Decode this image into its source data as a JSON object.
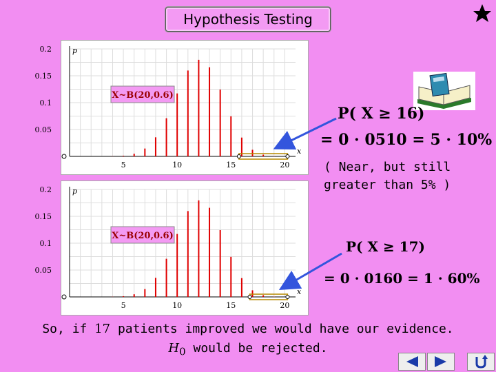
{
  "header": {
    "title": "Hypothesis Testing"
  },
  "icons": {
    "star": "star-icon",
    "book": "book-with-calculator-icon"
  },
  "charts": [
    {
      "label": "X~B(20,0.6)",
      "highlight_from": 16
    },
    {
      "label": "X~B(20,0.6)",
      "highlight_from": 17
    }
  ],
  "chart_data": [
    {
      "type": "bar",
      "title": "",
      "annotation": "X~B(20,0.6)",
      "xlabel": "x",
      "ylabel": "p",
      "xlim": [
        0,
        21
      ],
      "ylim": [
        0,
        0.2
      ],
      "x_ticks": [
        5,
        10,
        15,
        20
      ],
      "y_ticks": [
        0.05,
        0.1,
        0.15,
        0.2
      ],
      "grid": true,
      "x": [
        0,
        1,
        2,
        3,
        4,
        5,
        6,
        7,
        8,
        9,
        10,
        11,
        12,
        13,
        14,
        15,
        16,
        17,
        18,
        19,
        20
      ],
      "values": [
        0.0,
        0.0,
        0.0,
        0.0,
        0.0003,
        0.0013,
        0.0049,
        0.0146,
        0.0355,
        0.071,
        0.1171,
        0.1597,
        0.1797,
        0.1659,
        0.1244,
        0.0746,
        0.035,
        0.0123,
        0.0031,
        0.0005,
        0.0
      ]
    },
    {
      "type": "bar",
      "title": "",
      "annotation": "X~B(20,0.6)",
      "xlabel": "x",
      "ylabel": "p",
      "xlim": [
        0,
        21
      ],
      "ylim": [
        0,
        0.2
      ],
      "x_ticks": [
        5,
        10,
        15,
        20
      ],
      "y_ticks": [
        0.05,
        0.1,
        0.15,
        0.2
      ],
      "grid": true,
      "x": [
        0,
        1,
        2,
        3,
        4,
        5,
        6,
        7,
        8,
        9,
        10,
        11,
        12,
        13,
        14,
        15,
        16,
        17,
        18,
        19,
        20
      ],
      "values": [
        0.0,
        0.0,
        0.0,
        0.0,
        0.0003,
        0.0013,
        0.0049,
        0.0146,
        0.0355,
        0.071,
        0.1171,
        0.1597,
        0.1797,
        0.1659,
        0.1244,
        0.0746,
        0.035,
        0.0123,
        0.0031,
        0.0005,
        0.0
      ]
    }
  ],
  "formulas": {
    "f1_line1": "P( X ≥ 16)",
    "f1_line2": "= 0 · 0510 = 5 · 10%",
    "f2_line1": "P( X ≥ 17)",
    "f2_line2": "= 0 · 0160 = 1 · 60%"
  },
  "note": "( Near, but still greater than 5% )",
  "conclusion": {
    "line1_prefix": "So, if",
    "line1_number": "17",
    "line1_suffix": "patients improved we would have our evidence.",
    "line2_symbol": "H",
    "line2_subscript": "0",
    "line2_suffix": "would be rejected."
  },
  "nav": {
    "prev": "prev-arrow-icon",
    "next": "next-arrow-icon",
    "return": "return-arrow-icon"
  },
  "colors": {
    "background": "#f28ef2",
    "bar": "#e00000",
    "arrow": "#3355dd",
    "label": "#990000"
  }
}
